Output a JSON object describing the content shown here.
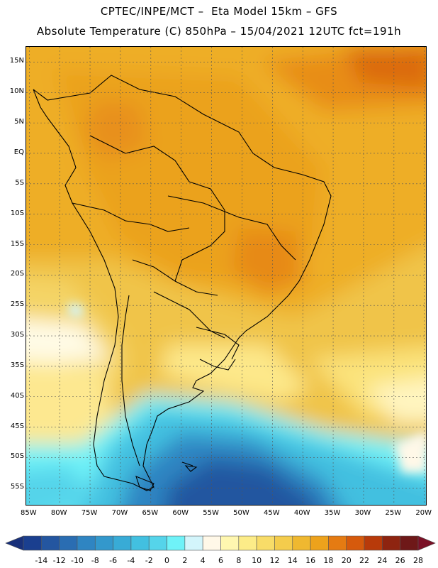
{
  "title": {
    "line1": "CPTEC/INPE/MCT –  Eta Model 15km – GFS",
    "line2": "Absolute Temperature (C) 850hPa – 15/04/2021 12UTC fct=191h"
  },
  "map": {
    "variable": "Absolute Temperature",
    "units": "C",
    "level": "850hPa",
    "region": "South America",
    "lat_labels": [
      "15N",
      "10N",
      "5N",
      "EQ",
      "5S",
      "10S",
      "15S",
      "20S",
      "25S",
      "30S",
      "35S",
      "40S",
      "45S",
      "50S",
      "55S"
    ],
    "lat_values": [
      15,
      10,
      5,
      0,
      -5,
      -10,
      -15,
      -20,
      -25,
      -30,
      -35,
      -40,
      -45,
      -50,
      -55
    ],
    "lon_labels": [
      "85W",
      "80W",
      "75W",
      "70W",
      "65W",
      "60W",
      "55W",
      "50W",
      "45W",
      "40W",
      "35W",
      "30W",
      "25W",
      "20W"
    ],
    "lon_values": [
      -85,
      -80,
      -75,
      -70,
      -65,
      -60,
      -55,
      -50,
      -45,
      -40,
      -35,
      -30,
      -25,
      -20
    ],
    "extent": {
      "lon_min": -85.5,
      "lon_max": -19.5,
      "lat_min": -58,
      "lat_max": 17.5
    }
  },
  "colorbar": {
    "labels": [
      "-14",
      "-12",
      "-10",
      "-8",
      "-6",
      "-4",
      "-2",
      "0",
      "2",
      "4",
      "6",
      "8",
      "10",
      "12",
      "14",
      "16",
      "18",
      "20",
      "22",
      "24",
      "26",
      "28"
    ],
    "colors": [
      "#1a3f8f",
      "#2456a0",
      "#2a6db2",
      "#2f85c2",
      "#3398cc",
      "#38abd6",
      "#42c0e0",
      "#55d4ea",
      "#6ff2f8",
      "#d3f5fb",
      "#fff8e8",
      "#fff7b0",
      "#fcec88",
      "#f8dc68",
      "#f4cc4c",
      "#efb830",
      "#eda21c",
      "#e57b12",
      "#d65a0c",
      "#b83a0a",
      "#8e2410",
      "#6e1818"
    ],
    "under_color": "#18307a",
    "over_color": "#7a1026"
  }
}
